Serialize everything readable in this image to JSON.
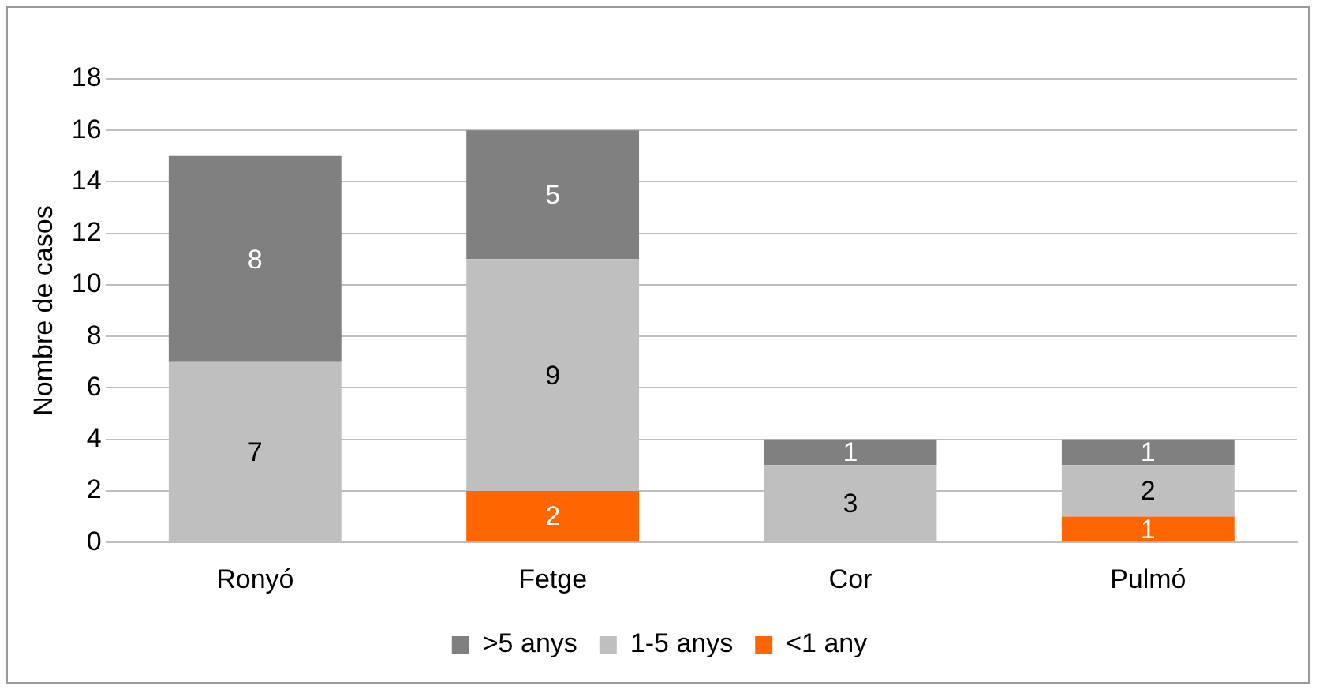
{
  "chart_data": {
    "type": "bar",
    "stacked": true,
    "ylabel": "Nombre de casos",
    "categories": [
      "Ronyó",
      "Fetge",
      "Cor",
      "Pulmó"
    ],
    "series": [
      {
        "name": "<1 any",
        "color": "#ff6600",
        "values": [
          null,
          2,
          null,
          1
        ]
      },
      {
        "name": "1-5 anys",
        "color": "#bfbfbf",
        "values": [
          7,
          9,
          3,
          2
        ]
      },
      {
        "name": ">5 anys",
        "color": "#808080",
        "values": [
          8,
          5,
          1,
          1
        ]
      }
    ],
    "ylim": [
      0,
      18
    ],
    "yticks": [
      0,
      2,
      4,
      6,
      8,
      10,
      12,
      14,
      16,
      18
    ],
    "grid": "y",
    "legend": "bottom",
    "data_labels": true
  }
}
